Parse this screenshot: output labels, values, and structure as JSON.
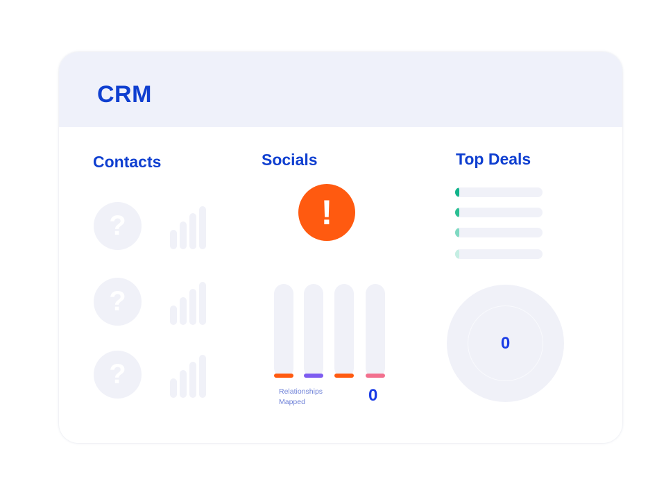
{
  "card": {
    "title": "CRM"
  },
  "contacts": {
    "title": "Contacts",
    "placeholder_glyph": "?",
    "rows": 3
  },
  "socials": {
    "title": "Socials",
    "alert_glyph": "!",
    "bars": [
      {
        "name": "social-bar-1",
        "accent": "#ff5a10"
      },
      {
        "name": "social-bar-2",
        "accent": "#7d5cf0"
      },
      {
        "name": "social-bar-3",
        "accent": "#ff5a10"
      },
      {
        "name": "social-bar-4",
        "accent": "#f2708e"
      }
    ],
    "relationships_label": "Relationships Mapped",
    "relationships_count": "0"
  },
  "top_deals": {
    "title": "Top Deals",
    "deals": [
      {
        "color": "#11b38a"
      },
      {
        "color": "#2bbf93"
      },
      {
        "color": "#7fd9c2"
      },
      {
        "color": "#c5eee3"
      }
    ],
    "total": "0"
  },
  "colors": {
    "brand_blue": "#0f3fd0",
    "alert_orange": "#ff5a10",
    "placeholder_gray": "#f0f1f8",
    "header_bg": "#eff1fa"
  }
}
